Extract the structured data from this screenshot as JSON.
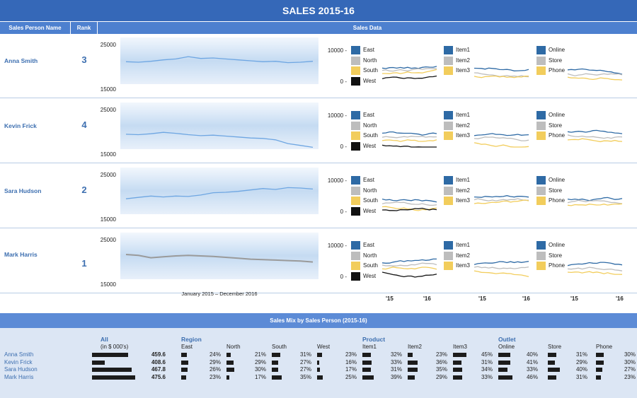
{
  "title": "SALES 2015-16",
  "headers": {
    "name": "Sales Person Name",
    "rank": "Rank",
    "data": "Sales Data"
  },
  "colors": {
    "East": "#2e6aa5",
    "North": "#bdbdbd",
    "South": "#f2cd5c",
    "West": "#111111",
    "Item1": "#2e6aa5",
    "Item2": "#bdbdbd",
    "Item3": "#f2cd5c",
    "Online": "#2e6aa5",
    "Store": "#bdbdbd",
    "Phone": "#f2cd5c",
    "trend": "#6ea6e2",
    "trend_highlight": "#9a9a9a"
  },
  "rows": [
    {
      "name": "Anna Smith",
      "rank": "3",
      "ymax": "25000",
      "ymin": "15000",
      "trend": [
        19800,
        19700,
        19900,
        20200,
        20400,
        20900,
        20500,
        20600,
        20400,
        20200,
        20000,
        19800,
        19900,
        19600,
        19700,
        19900
      ]
    },
    {
      "name": "Kevin Frick",
      "rank": "4",
      "ymax": "25000",
      "ymin": "15000",
      "trend": [
        18200,
        18100,
        18300,
        18600,
        18400,
        18100,
        17900,
        18000,
        17800,
        17600,
        17400,
        17300,
        17000,
        16200,
        15800,
        15400
      ]
    },
    {
      "name": "Sara Hudson",
      "rank": "2",
      "ymax": "25000",
      "ymin": "15000",
      "trend": [
        18300,
        18600,
        18900,
        18700,
        18900,
        18800,
        19100,
        19600,
        19700,
        19900,
        20200,
        20500,
        20300,
        20700,
        20600,
        20400
      ]
    },
    {
      "name": "Mark Harris",
      "rank": "1",
      "ymax": "25000",
      "ymin": "15000",
      "trend": [
        20300,
        20100,
        19600,
        19800,
        20000,
        20100,
        20000,
        19900,
        19700,
        19500,
        19300,
        19200,
        19100,
        19000,
        18900,
        18700
      ]
    }
  ],
  "legends": {
    "region": [
      "East",
      "North",
      "South",
      "West"
    ],
    "product": [
      "Item1",
      "Item2",
      "Item3"
    ],
    "outlet": [
      "Online",
      "Store",
      "Phone"
    ]
  },
  "axis": {
    "top": "10000 -",
    "bottom": "0 -"
  },
  "x_range": "January 2015 – December 2016",
  "years": [
    "'15",
    "'16"
  ],
  "mix": {
    "title": "Sales Mix by Sales Person (2015-16)",
    "sections": {
      "all": "All",
      "region": "Region",
      "product": "Product",
      "outlet": "Outlet"
    },
    "all_sub": "(in $ 000's)",
    "cols": {
      "region": [
        "East",
        "North",
        "South",
        "West"
      ],
      "product": [
        "Item1",
        "Item2",
        "Item3"
      ],
      "outlet": [
        "Online",
        "Store",
        "Phone"
      ]
    },
    "rows": [
      {
        "name": "Anna Smith",
        "total": "459.6",
        "total_val": 459.6,
        "pcts": [
          "24%",
          "21%",
          "31%",
          "23%",
          "32%",
          "23%",
          "45%",
          "40%",
          "31%",
          "30%"
        ]
      },
      {
        "name": "Kevin Frick",
        "total": "408.6",
        "total_val": 408.6,
        "pcts": [
          "29%",
          "29%",
          "27%",
          "16%",
          "33%",
          "36%",
          "31%",
          "41%",
          "29%",
          "30%"
        ]
      },
      {
        "name": "Sara Hudson",
        "total": "467.8",
        "total_val": 467.8,
        "pcts": [
          "26%",
          "30%",
          "27%",
          "17%",
          "31%",
          "35%",
          "34%",
          "33%",
          "40%",
          "27%"
        ]
      },
      {
        "name": "Mark Harris",
        "total": "475.6",
        "total_val": 475.6,
        "pcts": [
          "23%",
          "17%",
          "35%",
          "25%",
          "39%",
          "29%",
          "33%",
          "46%",
          "31%",
          "23%"
        ]
      }
    ]
  }
}
